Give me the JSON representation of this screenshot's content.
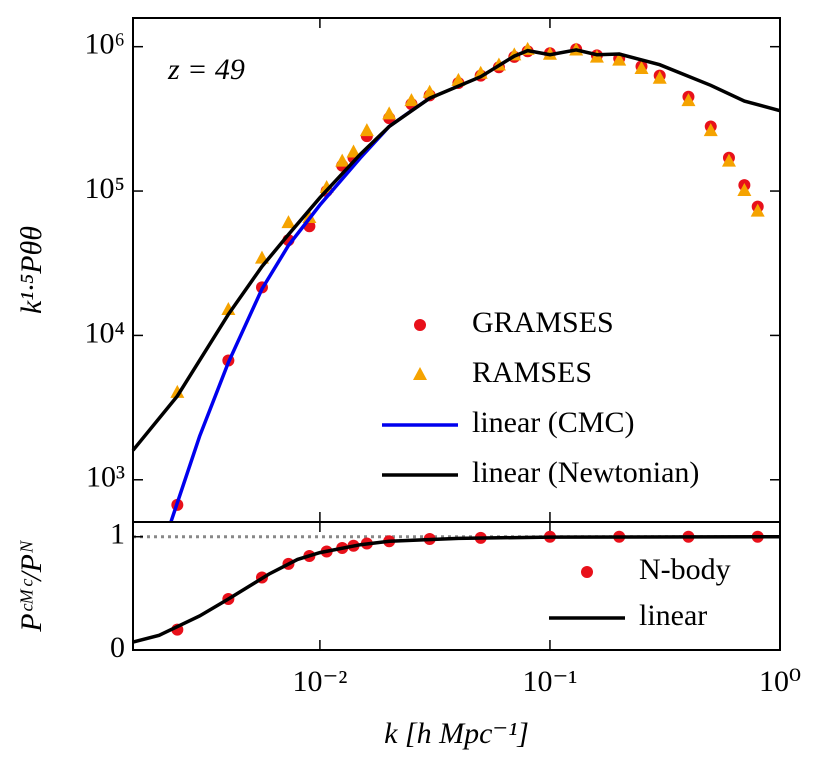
{
  "chart_data": [
    {
      "type": "line",
      "ylabel": "k¹·⁵Pθθ",
      "annotation": "z = 49",
      "xlim": [
        0.00154,
        1
      ],
      "ylim": [
        510,
        1580000
      ],
      "log_x": true,
      "log_y": true,
      "yticks": [
        {
          "value": 1000,
          "label": "10³"
        },
        {
          "value": 10000,
          "label": "10⁴"
        },
        {
          "value": 100000,
          "label": "10⁵"
        },
        {
          "value": 1000000,
          "label": "10⁶"
        }
      ],
      "legend": "lower right",
      "series": [
        {
          "name": "GRAMSES",
          "color": "#e8101a",
          "marker": "circle",
          "x": [
            0.0024,
            0.004,
            0.0056,
            0.0073,
            0.009,
            0.0107,
            0.0125,
            0.014,
            0.016,
            0.02,
            0.025,
            0.03,
            0.04,
            0.05,
            0.06,
            0.07,
            0.08,
            0.1,
            0.13,
            0.16,
            0.2,
            0.25,
            0.3,
            0.4,
            0.5,
            0.6,
            0.7,
            0.8
          ],
          "values": [
            670,
            6700,
            21500,
            45700,
            57000,
            100000,
            150000,
            170000,
            240000,
            320000,
            400000,
            460000,
            560000,
            630000,
            720000,
            850000,
            930000,
            900000,
            960000,
            870000,
            830000,
            730000,
            630000,
            450000,
            280000,
            170000,
            110000,
            78000
          ]
        },
        {
          "name": "RAMSES",
          "color": "#f5a300",
          "marker": "triangle",
          "x": [
            0.0024,
            0.004,
            0.0056,
            0.0073,
            0.009,
            0.0107,
            0.0125,
            0.014,
            0.016,
            0.02,
            0.025,
            0.03,
            0.04,
            0.05,
            0.06,
            0.07,
            0.08,
            0.1,
            0.13,
            0.16,
            0.2,
            0.25,
            0.3,
            0.4,
            0.5,
            0.6,
            0.7,
            0.8
          ],
          "values": [
            4000,
            15000,
            34000,
            60000,
            65000,
            105000,
            160000,
            185000,
            260000,
            340000,
            420000,
            480000,
            580000,
            650000,
            740000,
            870000,
            950000,
            880000,
            940000,
            840000,
            800000,
            700000,
            600000,
            420000,
            260000,
            160000,
            100000,
            72000
          ]
        },
        {
          "name": "linear (CMC)",
          "color": "#0000ee",
          "line": true,
          "x": [
            0.00225,
            0.003,
            0.004,
            0.0056,
            0.0073,
            0.01,
            0.015,
            0.02,
            0.025,
            0.03
          ],
          "values": [
            510,
            2000,
            6500,
            21000,
            42000,
            80000,
            170000,
            280000,
            360000,
            440000
          ]
        },
        {
          "name": "linear (Newtonian)",
          "color": "#000000",
          "line": true,
          "x": [
            0.00154,
            0.0024,
            0.004,
            0.0056,
            0.0073,
            0.01,
            0.015,
            0.02,
            0.03,
            0.05,
            0.07,
            0.08,
            0.1,
            0.13,
            0.16,
            0.2,
            0.3,
            0.5,
            0.7,
            1.0
          ],
          "values": [
            1600,
            3800,
            14000,
            30000,
            50000,
            90000,
            180000,
            280000,
            440000,
            620000,
            860000,
            940000,
            880000,
            950000,
            880000,
            890000,
            750000,
            540000,
            420000,
            360000
          ]
        }
      ]
    },
    {
      "type": "line",
      "ylabel": "Pᶜᴹᶜ/Pᴺ",
      "xlabel": "k [h Mpc⁻¹]",
      "xlim": [
        0.00154,
        1
      ],
      "ylim": [
        0,
        1.13
      ],
      "log_x": true,
      "xticks": [
        {
          "value": 0.01,
          "label": "10⁻²"
        },
        {
          "value": 0.1,
          "label": "10⁻¹"
        },
        {
          "value": 1,
          "label": "10⁰"
        }
      ],
      "yticks": [
        0,
        1
      ],
      "reference_line": {
        "value": 1,
        "color": "#888888"
      },
      "legend": "lower right",
      "series": [
        {
          "name": "N-body",
          "color": "#e8101a",
          "marker": "circle",
          "x": [
            0.0024,
            0.004,
            0.0056,
            0.0073,
            0.009,
            0.0107,
            0.0125,
            0.014,
            0.016,
            0.02,
            0.03,
            0.05,
            0.1,
            0.2,
            0.4,
            0.8
          ],
          "values": [
            0.18,
            0.45,
            0.64,
            0.76,
            0.83,
            0.87,
            0.9,
            0.92,
            0.94,
            0.96,
            0.98,
            0.99,
            1.0,
            1.0,
            1.0,
            1.0
          ]
        },
        {
          "name": "linear",
          "color": "#000000",
          "line": true,
          "x": [
            0.00154,
            0.002,
            0.003,
            0.004,
            0.006,
            0.008,
            0.01,
            0.015,
            0.02,
            0.04,
            0.1,
            1.0
          ],
          "values": [
            0.07,
            0.13,
            0.3,
            0.45,
            0.67,
            0.8,
            0.86,
            0.93,
            0.96,
            0.985,
            0.997,
            1.0
          ]
        }
      ]
    }
  ]
}
